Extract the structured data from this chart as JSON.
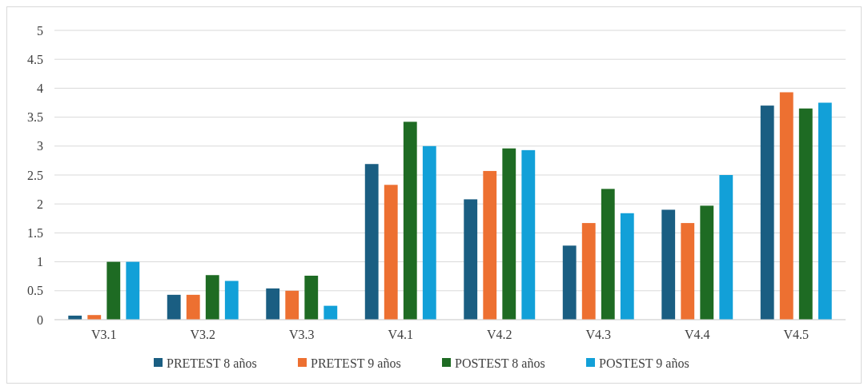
{
  "chart_data": {
    "type": "bar",
    "categories": [
      "V3.1",
      "V3.2",
      "V3.3",
      "V4.1",
      "V4.2",
      "V4.3",
      "V4.4",
      "V4.5"
    ],
    "series": [
      {
        "name": "PRETEST 8 años",
        "color": "#1a5e82",
        "values": [
          0.07,
          0.43,
          0.54,
          2.69,
          2.08,
          1.28,
          1.9,
          3.7
        ]
      },
      {
        "name": "PRETEST 9 años",
        "color": "#ed7031",
        "values": [
          0.08,
          0.43,
          0.5,
          2.33,
          2.57,
          1.67,
          1.67,
          3.93
        ]
      },
      {
        "name": "POSTEST 8 años",
        "color": "#1e6b23",
        "values": [
          1,
          0.77,
          0.76,
          3.42,
          2.96,
          2.26,
          1.97,
          3.65
        ]
      },
      {
        "name": "POSTEST 9 años",
        "color": "#12a0d8",
        "values": [
          1,
          0.67,
          0.24,
          3,
          2.93,
          1.84,
          2.5,
          3.75
        ]
      }
    ],
    "ylim": [
      0,
      5
    ],
    "yticks": [
      0,
      0.5,
      1,
      1.5,
      2,
      2.5,
      3,
      3.5,
      4,
      4.5,
      5
    ],
    "grid": "y",
    "legend": "bottom"
  }
}
